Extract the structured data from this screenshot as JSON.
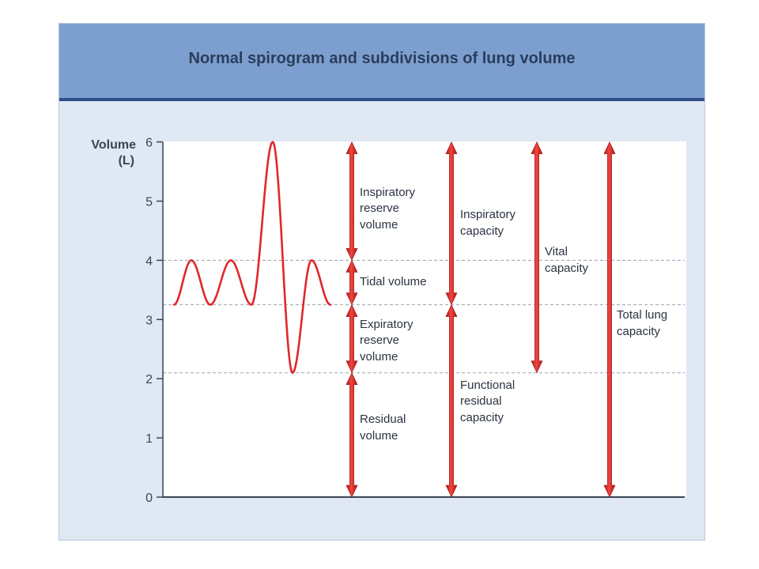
{
  "title": "Normal spirogram and subdivisions of lung volume",
  "y_axis": {
    "label_line1": "Volume",
    "label_line2": "(L)",
    "ticks": [
      "0",
      "1",
      "2",
      "3",
      "4",
      "5",
      "6"
    ]
  },
  "colors": {
    "trace": "#e0282c",
    "arrow": "#d8262a",
    "header": "#7c9fcf",
    "panel": "#dfe8f3"
  },
  "levels_L": {
    "residual": 2.1,
    "functional_residual": 3.25,
    "end_inspiration": 4.0,
    "total": 6.0
  },
  "volumes": {
    "inspiratory_reserve": [
      "Inspiratory",
      "reserve",
      "volume"
    ],
    "tidal": [
      "Tidal volume"
    ],
    "expiratory_reserve": [
      "Expiratory",
      "reserve",
      "volume"
    ],
    "residual": [
      "Residual",
      "volume"
    ]
  },
  "capacities": {
    "inspiratory": [
      "Inspiratory",
      "capacity"
    ],
    "functional_residual": [
      "Functional",
      "residual",
      "capacity"
    ],
    "vital": [
      "Vital",
      "capacity"
    ],
    "total_lung": [
      "Total lung",
      "capacity"
    ]
  }
}
